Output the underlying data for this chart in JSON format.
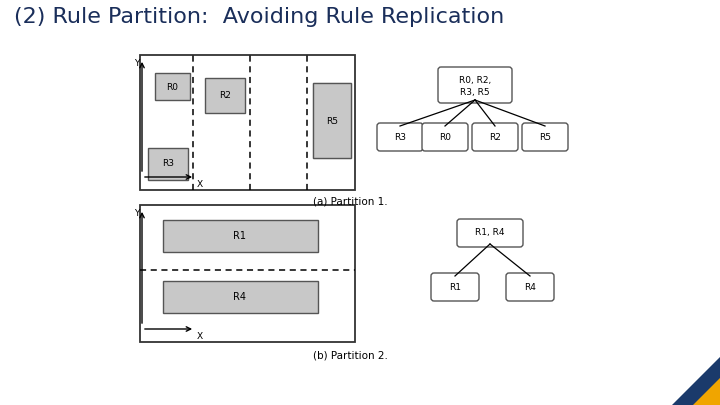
{
  "title": "(2) Rule Partition:  Avoiding Rule Replication",
  "title_color": "#1a2e5a",
  "title_fontsize": 16,
  "bg_color": "#ffffff",
  "watermark_colors": [
    "#1a3a6b",
    "#f0a500"
  ],
  "caption_a": "(a) Partition 1.",
  "caption_b": "(b) Partition 2.",
  "gray_fill": "#c8c8c8",
  "white_fill": "#ffffff",
  "box_edge": "#555555",
  "line_color": "#333333"
}
